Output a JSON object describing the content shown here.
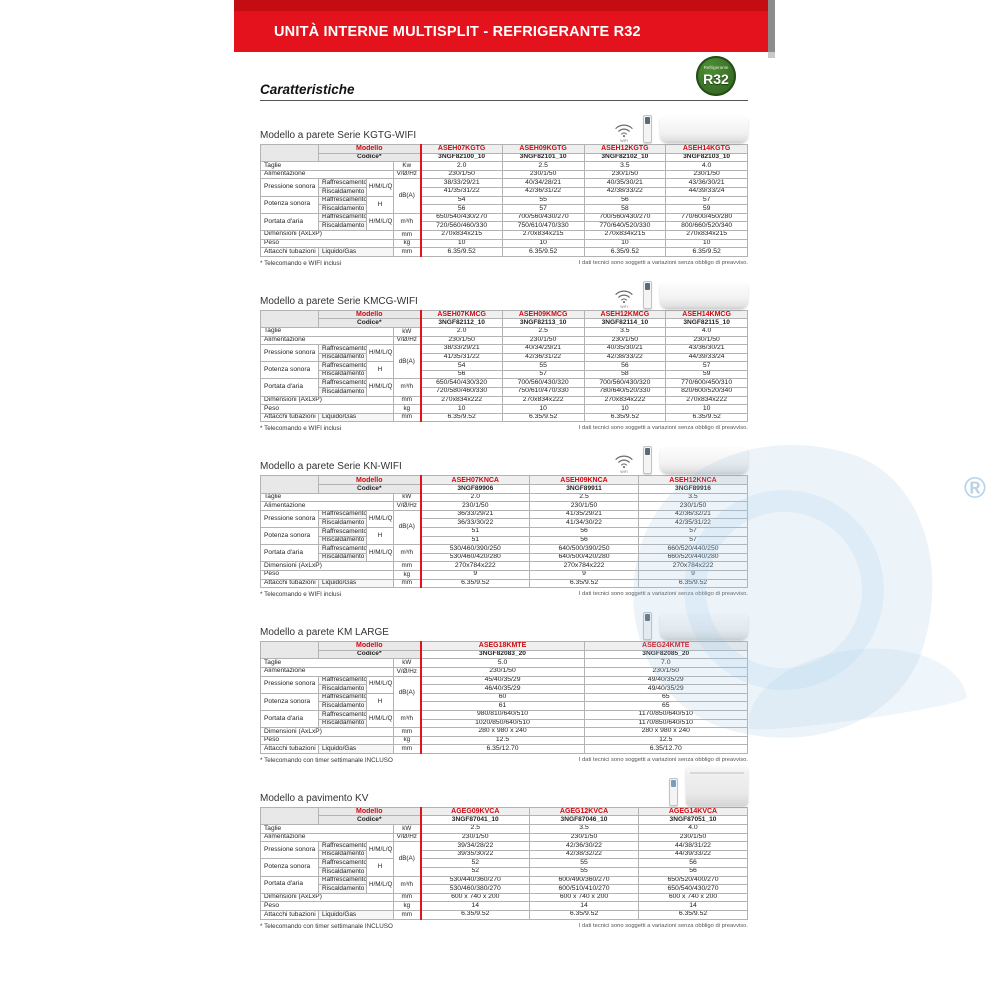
{
  "banner": {
    "title": "UNITÀ INTERNE MULTISPLIT - REFRIGERANTE R32"
  },
  "page": {
    "heading": "Caratteristiche",
    "watermark_symbol": "®"
  },
  "badge": {
    "top": "Refrigerante",
    "main": "R32"
  },
  "colors": {
    "banner_red": "#e3121c",
    "model_red": "#cf0a10",
    "badge_green": "#3c7d2b",
    "header_gray": "#e8e8e8"
  },
  "table_labels": {
    "modello": "Modello",
    "codice": "Codice*",
    "wifi_label": "WIFI"
  },
  "sections": [
    {
      "title": "Modello a parete Serie KGTG-WIFI",
      "wifi": true,
      "unit_type": "wall",
      "models": [
        "ASEH07KGTG",
        "ASEH09KGTG",
        "ASEH12KGTG",
        "ASEH14KGTG"
      ],
      "codes": [
        "3NGF82100_10",
        "3NGF82101_10",
        "3NGF82102_10",
        "3NGF82103_10"
      ],
      "rows": [
        {
          "l": "Taglie",
          "lcs": 3,
          "u": "Kw",
          "v": [
            "2.0",
            "2.5",
            "3.5",
            "4.0"
          ]
        },
        {
          "l": "Alimentazione",
          "lcs": 3,
          "u": "V/Ø/Hz",
          "v": [
            "230/1/50",
            "230/1/50",
            "230/1/50",
            "230/1/50"
          ]
        },
        {
          "l": "Pressione sonora",
          "lrs": 2,
          "s": "Raffrescamento",
          "m": "H/M/L/Q",
          "mrs": 2,
          "u": "dB(A)",
          "urs": 4,
          "v": [
            "38/33/29/21",
            "40/34/28/21",
            "40/35/30/21",
            "43/36/30/21"
          ]
        },
        {
          "s": "Riscaldamento",
          "v": [
            "41/35/31/22",
            "42/36/31/22",
            "42/38/33/22",
            "44/39/33/24"
          ]
        },
        {
          "l": "Potenza sonora",
          "lrs": 2,
          "s": "Raffrescamento",
          "m": "H",
          "mrs": 2,
          "v": [
            "54",
            "55",
            "56",
            "57"
          ]
        },
        {
          "s": "Riscaldamento",
          "v": [
            "56",
            "57",
            "58",
            "59"
          ]
        },
        {
          "l": "Portata d'aria",
          "lrs": 2,
          "s": "Raffrescamento",
          "m": "H/M/L/Q",
          "mrs": 2,
          "u": "m³/h",
          "urs": 2,
          "v": [
            "650/540/430/270",
            "700/560/430/270",
            "700/560/430/270",
            "770/600/450/280"
          ]
        },
        {
          "s": "Riscaldamento",
          "v": [
            "720/560/460/330",
            "750/610/470/330",
            "770/640/520/330",
            "800/660/520/340"
          ]
        },
        {
          "l": "Dimensioni (AxLxP)",
          "lcs": 3,
          "u": "mm",
          "v": [
            "270x834x215",
            "270x834x215",
            "270x834x215",
            "270x834x215"
          ]
        },
        {
          "l": "Peso",
          "lcs": 3,
          "u": "kg",
          "v": [
            "10",
            "10",
            "10",
            "10"
          ]
        },
        {
          "l": "Attacchi tubazioni",
          "s": "Liquido/Gas",
          "scs": 2,
          "u": "mm",
          "v": [
            "6.35/9.52",
            "6.35/9.52",
            "6.35/9.52",
            "6.35/9.52"
          ]
        }
      ],
      "footnote_left": "* Telecomando e WIFI inclusi",
      "footnote_right": "I dati tecnici sono soggetti a variazioni senza obbligo di preavviso."
    },
    {
      "title": "Modello a parete Serie KMCG-WIFI",
      "wifi": true,
      "unit_type": "wall",
      "models": [
        "ASEH07KMCG",
        "ASEH09KMCG",
        "ASEH12KMCG",
        "ASEH14KMCG"
      ],
      "codes": [
        "3NGF82112_10",
        "3NGF82113_10",
        "3NGF82114_10",
        "3NGF82115_10"
      ],
      "rows": [
        {
          "l": "Taglie",
          "lcs": 3,
          "u": "kW",
          "v": [
            "2.0",
            "2.5",
            "3.5",
            "4.0"
          ]
        },
        {
          "l": "Alimentazione",
          "lcs": 3,
          "u": "V/Ø/Hz",
          "v": [
            "230/1/50",
            "230/1/50",
            "230/1/50",
            "230/1/50"
          ]
        },
        {
          "l": "Pressione sonora",
          "lrs": 2,
          "s": "Raffrescamento",
          "m": "H/M/L/Q",
          "mrs": 2,
          "u": "dB(A)",
          "urs": 4,
          "v": [
            "38/33/29/21",
            "40/34/29/21",
            "40/35/30/21",
            "43/36/30/21"
          ]
        },
        {
          "s": "Riscaldamento",
          "v": [
            "41/35/31/22",
            "42/36/31/22",
            "42/38/33/22",
            "44/39/33/24"
          ]
        },
        {
          "l": "Potenza sonora",
          "lrs": 2,
          "s": "Raffrescamento",
          "m": "H",
          "mrs": 2,
          "v": [
            "54",
            "55",
            "56",
            "57"
          ]
        },
        {
          "s": "Riscaldamento",
          "v": [
            "56",
            "57",
            "58",
            "59"
          ]
        },
        {
          "l": "Portata d'aria",
          "lrs": 2,
          "s": "Raffrescamento",
          "m": "H/M/L/Q",
          "mrs": 2,
          "u": "m³/h",
          "urs": 2,
          "v": [
            "650/540/430/320",
            "700/560/430/320",
            "700/560/430/320",
            "770/600/450/310"
          ]
        },
        {
          "s": "Riscaldamento",
          "v": [
            "720/580/460/330",
            "750/610/470/330",
            "780/640/520/330",
            "820/600/520/340"
          ]
        },
        {
          "l": "Dimensioni (AxLxP)",
          "lcs": 3,
          "u": "mm",
          "v": [
            "270x834x222",
            "270x834x222",
            "270x834x222",
            "270x834x222"
          ]
        },
        {
          "l": "Peso",
          "lcs": 3,
          "u": "kg",
          "v": [
            "10",
            "10",
            "10",
            "10"
          ]
        },
        {
          "l": "Attacchi tubazioni",
          "s": "Liquido/Gas",
          "scs": 2,
          "u": "mm",
          "v": [
            "6.35/9.52",
            "6.35/9.52",
            "6.35/9.52",
            "6.35/9.52"
          ]
        }
      ],
      "footnote_left": "* Telecomando e WIFI inclusi",
      "footnote_right": "I dati tecnici sono soggetti a variazioni senza obbligo di preavviso."
    },
    {
      "title": "Modello a parete Serie KN-WIFI",
      "wifi": true,
      "unit_type": "wall",
      "models": [
        "ASEH07KNCA",
        "ASEH09KNCA",
        "ASEH12KNCA"
      ],
      "codes": [
        "3NGF89906",
        "3NGF89911",
        "3NGF89916"
      ],
      "rows": [
        {
          "l": "Taglie",
          "lcs": 3,
          "u": "kW",
          "v": [
            "2.0",
            "2.5",
            "3.5"
          ]
        },
        {
          "l": "Alimentazione",
          "lcs": 3,
          "u": "V/Ø/Hz",
          "v": [
            "230/1/50",
            "230/1/50",
            "230/1/50"
          ]
        },
        {
          "l": "Pressione sonora",
          "lrs": 2,
          "s": "Raffrescamento",
          "m": "H/M/L/Q",
          "mrs": 2,
          "u": "dB(A)",
          "urs": 4,
          "v": [
            "36/33/29/21",
            "41/35/29/21",
            "42/36/32/21"
          ]
        },
        {
          "s": "Riscaldamento",
          "v": [
            "36/33/30/22",
            "41/34/30/22",
            "42/35/31/22"
          ]
        },
        {
          "l": "Potenza sonora",
          "lrs": 2,
          "s": "Raffrescamento",
          "m": "H",
          "mrs": 2,
          "v": [
            "51",
            "56",
            "57"
          ]
        },
        {
          "s": "Riscaldamento",
          "v": [
            "51",
            "56",
            "57"
          ]
        },
        {
          "l": "Portata d'aria",
          "lrs": 2,
          "s": "Raffrescamento",
          "m": "H/M/L/Q",
          "mrs": 2,
          "u": "m³/h",
          "urs": 2,
          "v": [
            "530/460/390/250",
            "640/500/390/250",
            "660/520/440/250"
          ]
        },
        {
          "s": "Riscaldamento",
          "v": [
            "530/460/420/280",
            "640/500/420/280",
            "660/520/440/280"
          ]
        },
        {
          "l": "Dimensioni (AxLxP)",
          "lcs": 3,
          "u": "mm",
          "v": [
            "270x784x222",
            "270x784x222",
            "270x784x222"
          ]
        },
        {
          "l": "Peso",
          "lcs": 3,
          "u": "kg",
          "v": [
            "9",
            "9",
            "9"
          ]
        },
        {
          "l": "Attacchi tubazioni",
          "s": "Liquido/Gas",
          "scs": 2,
          "u": "mm",
          "v": [
            "6.35/9.52",
            "6.35/9.52",
            "6.35/9.52"
          ]
        }
      ],
      "footnote_left": "* Telecomando e WIFI inclusi",
      "footnote_right": "I dati tecnici sono soggetti a variazioni senza obbligo di preavviso."
    },
    {
      "title": "Modello a parete KM LARGE",
      "wifi": false,
      "unit_type": "wall",
      "models": [
        "ASEG18KMTE",
        "ASEG24KMTE"
      ],
      "codes": [
        "3NGF82083_20",
        "3NGF82085_20"
      ],
      "rows": [
        {
          "l": "Taglie",
          "lcs": 3,
          "u": "kW",
          "v": [
            "5.0",
            "7.0"
          ]
        },
        {
          "l": "Alimentazione",
          "lcs": 3,
          "u": "V/Ø/Hz",
          "v": [
            "230/1/50",
            "230/1/50"
          ]
        },
        {
          "l": "Pressione sonora",
          "lrs": 2,
          "s": "Raffrescamento",
          "m": "H/M/L/Q",
          "mrs": 2,
          "u": "dB(A)",
          "urs": 4,
          "v": [
            "45/40/35/29",
            "49/40/35/29"
          ]
        },
        {
          "s": "Riscaldamento",
          "v": [
            "46/40/35/29",
            "49/40/35/29"
          ]
        },
        {
          "l": "Potenza sonora",
          "lrs": 2,
          "s": "Raffrescamento",
          "m": "H",
          "mrs": 2,
          "v": [
            "60",
            "65"
          ]
        },
        {
          "s": "Riscaldamento",
          "v": [
            "61",
            "65"
          ]
        },
        {
          "l": "Portata d'aria",
          "lrs": 2,
          "s": "Raffrescamento",
          "m": "H/M/L/Q",
          "mrs": 2,
          "u": "m³/h",
          "urs": 2,
          "v": [
            "980/810/640/510",
            "1170/850/640/510"
          ]
        },
        {
          "s": "Riscaldamento",
          "v": [
            "1020/850/640/510",
            "1170/850/640/510"
          ]
        },
        {
          "l": "Dimensioni (AxLxP)",
          "lcs": 3,
          "u": "mm",
          "v": [
            "280 x 980 x 240",
            "280 x 980 x 240"
          ]
        },
        {
          "l": "Peso",
          "lcs": 3,
          "u": "kg",
          "v": [
            "12.5",
            "12.5"
          ]
        },
        {
          "l": "Attacchi tubazioni",
          "s": "Liquido/Gas",
          "scs": 2,
          "u": "mm",
          "v": [
            "6.35/12.70",
            "6.35/12.70"
          ]
        }
      ],
      "footnote_left": "* Telecomando con timer settimanale INCLUSO",
      "footnote_right": "I dati tecnici sono soggetti a variazioni senza obbligo di preavviso."
    },
    {
      "title": "Modello a pavimento KV",
      "wifi": false,
      "unit_type": "floor",
      "models": [
        "AGEG09KVCA",
        "AGEG12KVCA",
        "AGEG14KVCA"
      ],
      "codes": [
        "3NGF87041_10",
        "3NGF87046_10",
        "3NGF87051_10"
      ],
      "rows": [
        {
          "l": "Taglie",
          "lcs": 3,
          "u": "kW",
          "v": [
            "2.5",
            "3.5",
            "4.0"
          ]
        },
        {
          "l": "Alimentazione",
          "lcs": 3,
          "u": "V/Ø/Hz",
          "v": [
            "230/1/50",
            "230/1/50",
            "230/1/50"
          ]
        },
        {
          "l": "Pressione sonora",
          "lrs": 2,
          "s": "Raffrescamento",
          "m": "H/M/L/Q",
          "mrs": 2,
          "u": "dB(A)",
          "urs": 4,
          "v": [
            "39/34/28/22",
            "42/36/30/22",
            "44/38/31/22"
          ]
        },
        {
          "s": "Riscaldamento",
          "v": [
            "39/35/30/22",
            "42/38/32/22",
            "44/39/33/22"
          ]
        },
        {
          "l": "Potenza sonora",
          "lrs": 2,
          "s": "Raffrescamento",
          "m": "H",
          "mrs": 2,
          "v": [
            "52",
            "55",
            "56"
          ]
        },
        {
          "s": "Riscaldamento",
          "v": [
            "52",
            "55",
            "56"
          ]
        },
        {
          "l": "Portata d'aria",
          "lrs": 2,
          "s": "Raffrescamento",
          "m": "H/M/L/Q",
          "mrs": 2,
          "u": "m³/h",
          "urs": 2,
          "v": [
            "530/440/360/270",
            "600/490/360/270",
            "650/520/400/270"
          ]
        },
        {
          "s": "Riscaldamento",
          "v": [
            "530/460/380/270",
            "600/510/410/270",
            "650/540/430/270"
          ]
        },
        {
          "l": "Dimensioni (AxLxP)",
          "lcs": 3,
          "u": "mm",
          "v": [
            "600 x 740 x 200",
            "600 x 740 x 200",
            "600 x 740 x 200"
          ]
        },
        {
          "l": "Peso",
          "lcs": 3,
          "u": "kg",
          "v": [
            "14",
            "14",
            "14"
          ]
        },
        {
          "l": "Attacchi tubazioni",
          "s": "Liquido/Gas",
          "scs": 2,
          "u": "mm",
          "v": [
            "6.35/9.52",
            "6.35/9.52",
            "6.35/9.52"
          ]
        }
      ],
      "footnote_left": "* Telecomando con timer settimanale INCLUSO",
      "footnote_right": "I dati tecnici sono soggetti a variazioni senza obbligo di preavviso."
    }
  ]
}
